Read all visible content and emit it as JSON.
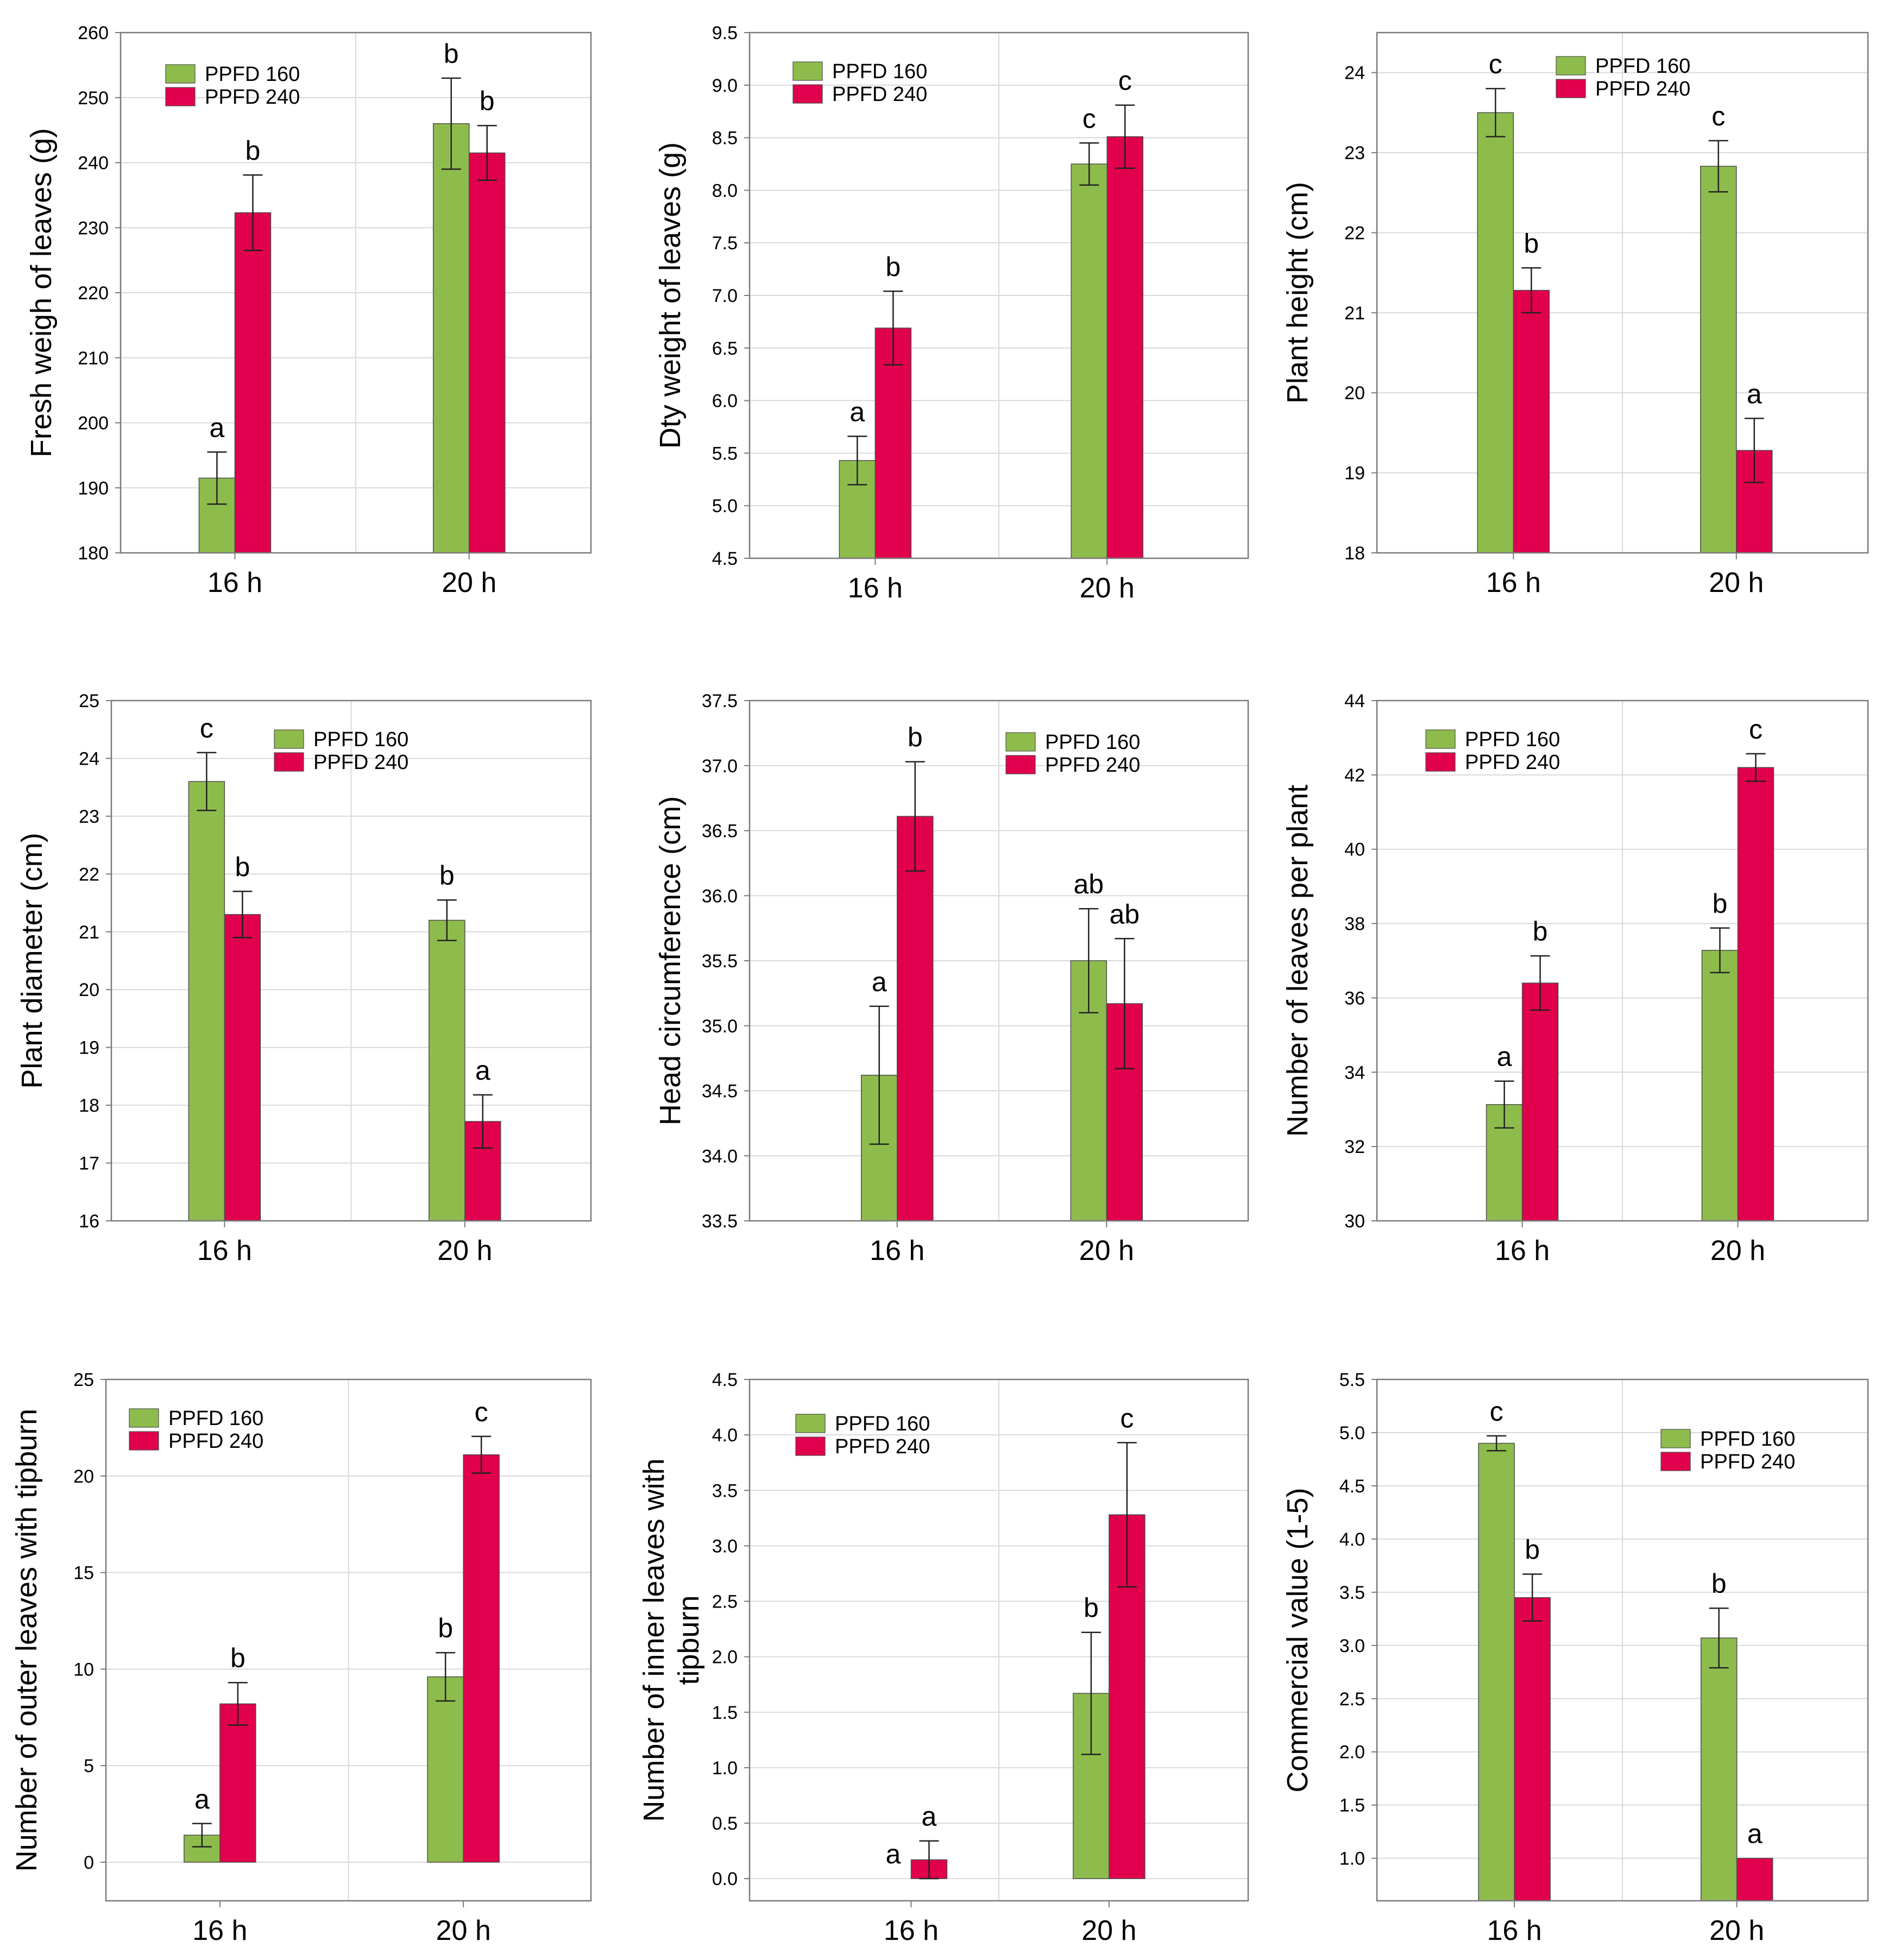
{
  "colors": {
    "ppfd160": "#8ebc4c",
    "ppfd240": "#e0004d",
    "grid": "#d9d9d9",
    "frame": "#7a7a7a"
  },
  "chart_data": [
    {
      "type": "bar",
      "ylabel": "Fresh weigh of leaves (g)",
      "categories": [
        "16 h",
        "20 h"
      ],
      "ylim": [
        180,
        260
      ],
      "yticks": [
        "180",
        "190",
        "200",
        "210",
        "220",
        "230",
        "240",
        "250",
        "260"
      ],
      "legend_position": "top-left",
      "series": [
        {
          "name": "PPFD 160",
          "values": [
            191.5,
            246
          ],
          "errors": [
            4,
            7
          ],
          "letters": [
            "a",
            "b"
          ]
        },
        {
          "name": "PPFD 240",
          "values": [
            232.3,
            241.5
          ],
          "errors": [
            5.8,
            4.2
          ],
          "letters": [
            "b",
            "b"
          ]
        }
      ]
    },
    {
      "type": "bar",
      "ylabel": "Dty weight of leaves (g)",
      "categories": [
        "16 h",
        "20 h"
      ],
      "ylim": [
        4.5,
        9.5
      ],
      "yticks": [
        "4.5",
        "5.0",
        "5.5",
        "6.0",
        "6.5",
        "7.0",
        "7.5",
        "8.0",
        "8.5",
        "9.0",
        "9.5"
      ],
      "legend_position": "top-left",
      "series": [
        {
          "name": "PPFD 160",
          "values": [
            5.43,
            8.25
          ],
          "errors": [
            0.23,
            0.2
          ],
          "letters": [
            "a",
            "c"
          ]
        },
        {
          "name": "PPFD 240",
          "values": [
            6.69,
            8.51
          ],
          "errors": [
            0.35,
            0.3
          ],
          "letters": [
            "b",
            "c"
          ]
        }
      ]
    },
    {
      "type": "bar",
      "ylabel": "Plant height (cm)",
      "categories": [
        "16 h",
        "20 h"
      ],
      "ylim": [
        18,
        24.5
      ],
      "yticks": [
        "18",
        "19",
        "20",
        "21",
        "22",
        "23",
        "24"
      ],
      "legend_position": "top-right",
      "series": [
        {
          "name": "PPFD 160",
          "values": [
            23.5,
            22.83
          ],
          "errors": [
            0.3,
            0.32
          ],
          "letters": [
            "c",
            "c"
          ]
        },
        {
          "name": "PPFD 240",
          "values": [
            21.28,
            19.28
          ],
          "errors": [
            0.28,
            0.4
          ],
          "letters": [
            "b",
            "a"
          ]
        }
      ]
    },
    {
      "type": "bar",
      "ylabel": "Plant diameter (cm)",
      "categories": [
        "16 h",
        "20 h"
      ],
      "ylim": [
        16,
        25
      ],
      "yticks": [
        "16",
        "17",
        "18",
        "19",
        "20",
        "21",
        "22",
        "23",
        "24",
        "25"
      ],
      "legend_position": "top-right",
      "series": [
        {
          "name": "PPFD 160",
          "values": [
            23.6,
            21.2
          ],
          "errors": [
            0.5,
            0.35
          ],
          "letters": [
            "c",
            "b"
          ]
        },
        {
          "name": "PPFD 240",
          "values": [
            21.3,
            17.72
          ],
          "errors": [
            0.4,
            0.46
          ],
          "letters": [
            "b",
            "a"
          ]
        }
      ]
    },
    {
      "type": "bar",
      "ylabel": "Head circumference (cm)",
      "categories": [
        "16 h",
        "20 h"
      ],
      "ylim": [
        33.5,
        37.5
      ],
      "yticks": [
        "33.5",
        "34.0",
        "34.5",
        "35.0",
        "35.5",
        "36.0",
        "36.5",
        "37.0",
        "37.5"
      ],
      "legend_position": "top-right",
      "series": [
        {
          "name": "PPFD 160",
          "values": [
            34.62,
            35.5
          ],
          "errors": [
            0.53,
            0.4
          ],
          "letters": [
            "a",
            "ab"
          ]
        },
        {
          "name": "PPFD 240",
          "values": [
            36.61,
            35.17
          ],
          "errors": [
            0.42,
            0.5
          ],
          "letters": [
            "b",
            "ab"
          ]
        }
      ]
    },
    {
      "type": "bar",
      "ylabel": "Number of leaves per plant",
      "categories": [
        "16 h",
        "20 h"
      ],
      "ylim": [
        30,
        44
      ],
      "yticks": [
        "30",
        "32",
        "34",
        "36",
        "38",
        "40",
        "42",
        "44"
      ],
      "legend_position": "top-left",
      "series": [
        {
          "name": "PPFD 160",
          "values": [
            33.13,
            37.28
          ],
          "errors": [
            0.63,
            0.6
          ],
          "letters": [
            "a",
            "b"
          ]
        },
        {
          "name": "PPFD 240",
          "values": [
            36.4,
            42.2
          ],
          "errors": [
            0.73,
            0.37
          ],
          "letters": [
            "b",
            "c"
          ]
        }
      ]
    },
    {
      "type": "bar",
      "ylabel": "Number of outer leaves with tipburn",
      "categories": [
        "16 h",
        "20 h"
      ],
      "ylim": [
        -2,
        25
      ],
      "yticks": [
        "0",
        "5",
        "10",
        "15",
        "20",
        "25"
      ],
      "legend_position": "top-left",
      "series": [
        {
          "name": "PPFD 160",
          "values": [
            1.4,
            9.6
          ],
          "errors": [
            0.6,
            1.25
          ],
          "letters": [
            "a",
            "b"
          ]
        },
        {
          "name": "PPFD 240",
          "values": [
            8.2,
            21.1
          ],
          "errors": [
            1.1,
            0.95
          ],
          "letters": [
            "b",
            "c"
          ]
        }
      ]
    },
    {
      "type": "bar",
      "ylabel": "Number of inner leaves with tipburn",
      "categories": [
        "16 h",
        "20 h"
      ],
      "ylim": [
        -0.2,
        4.5
      ],
      "yticks": [
        "0.0",
        "0.5",
        "1.0",
        "1.5",
        "2.0",
        "2.5",
        "3.0",
        "3.5",
        "4.0",
        "4.5"
      ],
      "legend_position": "top-left",
      "series": [
        {
          "name": "PPFD 160",
          "values": [
            0.0,
            1.67
          ],
          "errors": [
            0,
            0.55
          ],
          "letters": [
            "a",
            "b"
          ]
        },
        {
          "name": "PPFD 240",
          "values": [
            0.17,
            3.28
          ],
          "errors": [
            0.17,
            0.65
          ],
          "letters": [
            "a",
            "c"
          ]
        }
      ]
    },
    {
      "type": "bar",
      "ylabel": "Commercial value (1-5)",
      "categories": [
        "16 h",
        "20 h"
      ],
      "ylim": [
        0.6,
        5.5
      ],
      "yticks": [
        "1.0",
        "1.5",
        "2.0",
        "2.5",
        "3.0",
        "3.5",
        "4.0",
        "4.5",
        "5.0",
        "5.5"
      ],
      "legend_position": "top-right",
      "series": [
        {
          "name": "PPFD 160",
          "values": [
            4.9,
            3.07
          ],
          "errors": [
            0.07,
            0.28
          ],
          "letters": [
            "c",
            "b"
          ]
        },
        {
          "name": "PPFD 240",
          "values": [
            3.45,
            1.0
          ],
          "errors": [
            0.22,
            0
          ],
          "letters": [
            "b",
            "a"
          ]
        }
      ]
    }
  ]
}
